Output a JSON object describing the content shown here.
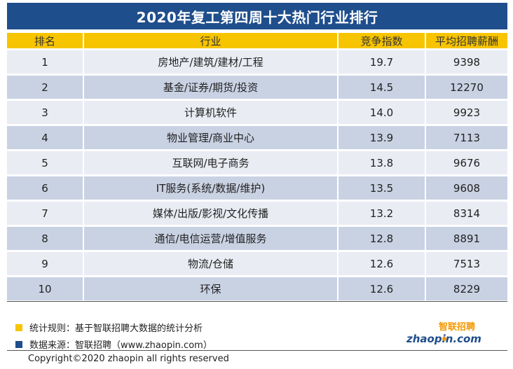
{
  "title": "2020年复工第四周十大热门行业排行",
  "headers": [
    "排名",
    "行业",
    "竞争指数",
    "平均招聘薪酬"
  ],
  "rows": [
    {
      "rank": "1",
      "industry": "房地产/建筑/建材/工程",
      "index": "19.7",
      "salary": "9398"
    },
    {
      "rank": "2",
      "industry": "基金/证券/期货/投资",
      "index": "14.5",
      "salary": "12270"
    },
    {
      "rank": "3",
      "industry": "计算机软件",
      "index": "14.0",
      "salary": "9923"
    },
    {
      "rank": "4",
      "industry": "物业管理/商业中心",
      "index": "13.9",
      "salary": "7113"
    },
    {
      "rank": "5",
      "industry": "互联网/电子商务",
      "index": "13.8",
      "salary": "9676"
    },
    {
      "rank": "6",
      "industry": "IT服务(系统/数据/维护)",
      "index": "13.5",
      "salary": "9608"
    },
    {
      "rank": "7",
      "industry": "媒体/出版/影视/文化传播",
      "index": "13.2",
      "salary": "8314"
    },
    {
      "rank": "8",
      "industry": "通信/电信运营/增值服务",
      "index": "12.8",
      "salary": "8891"
    },
    {
      "rank": "9",
      "industry": "物流/仓储",
      "index": "12.6",
      "salary": "7513"
    },
    {
      "rank": "10",
      "industry": "环保",
      "index": "12.6",
      "salary": "8229"
    }
  ],
  "notes": {
    "stat_rule": "统计规则：基于智联招聘大数据的统计分析",
    "data_source": "数据来源：智联招聘（www.zhaopin.com）"
  },
  "logo": {
    "top": "智联招聘",
    "bottom": "zhaopin.com"
  },
  "copyright": "Copyright©2020 zhaopin all rights reserved",
  "colors": {
    "title_bg": "#1f4e8c",
    "header_bg": "#f7c400",
    "row_light": "#e9ecf3",
    "row_dark": "#c9d2e3",
    "note_yellow": "#f7c400",
    "note_blue": "#1f4e8c",
    "logo_orange": "#f39800",
    "logo_blue": "#1f4e8c"
  }
}
